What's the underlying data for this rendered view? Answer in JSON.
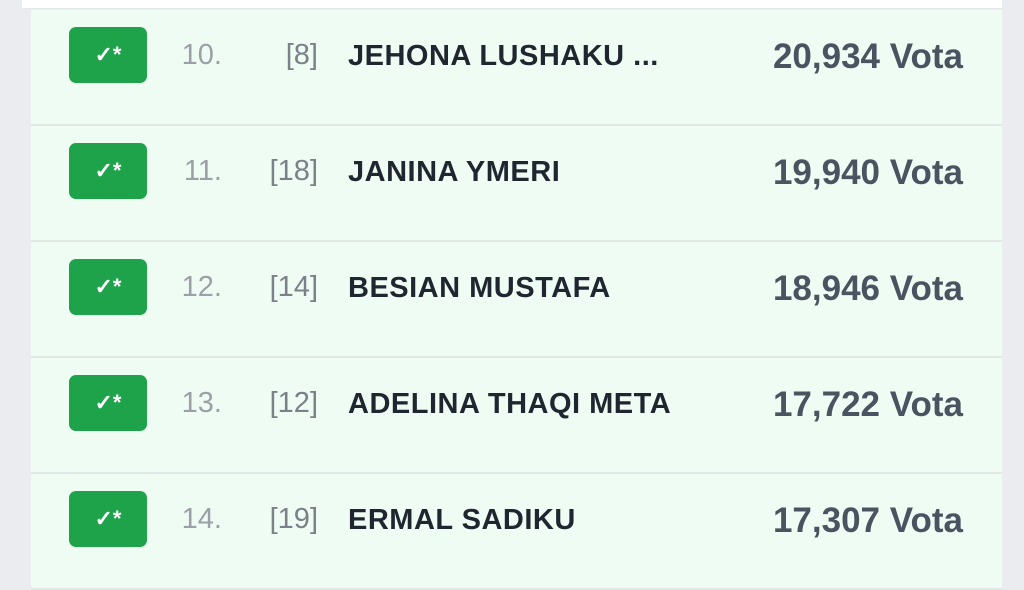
{
  "badge_label": "✓*",
  "colors": {
    "badge": "#1ea34a",
    "row_bg": "#effcf3"
  },
  "candidates": [
    {
      "rank": "10.",
      "number": "[8]",
      "name": "JEHONA LUSHAKU ...",
      "votes": "20,934 Vota"
    },
    {
      "rank": "11.",
      "number": "[18]",
      "name": "JANINA YMERI",
      "votes": "19,940 Vota"
    },
    {
      "rank": "12.",
      "number": "[14]",
      "name": "BESIAN MUSTAFA",
      "votes": "18,946 Vota"
    },
    {
      "rank": "13.",
      "number": "[12]",
      "name": "ADELINA THAQI META",
      "votes": "17,722 Vota"
    },
    {
      "rank": "14.",
      "number": "[19]",
      "name": "ERMAL SADIKU",
      "votes": "17,307 Vota"
    }
  ]
}
